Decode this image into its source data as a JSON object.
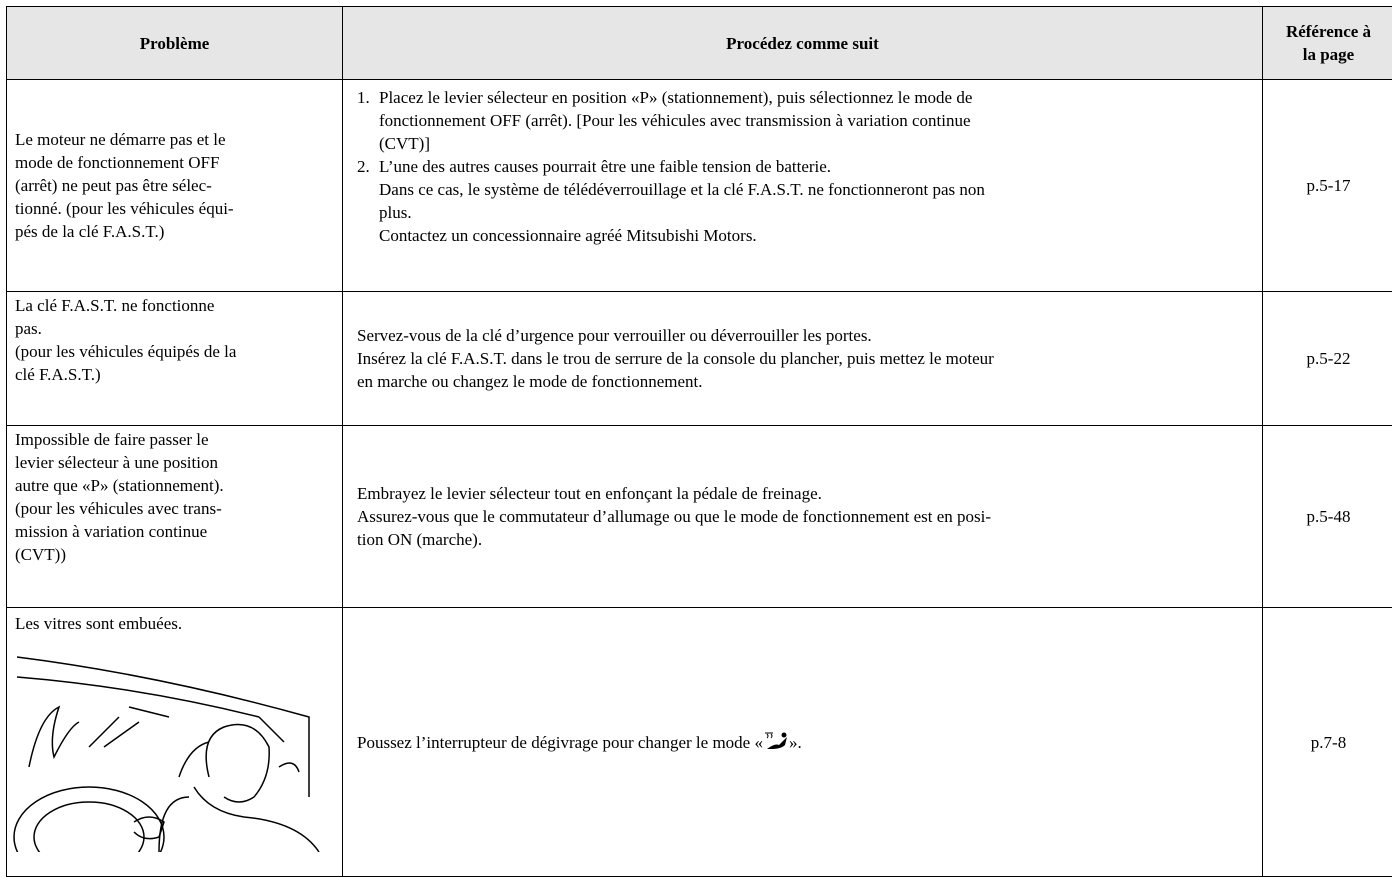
{
  "table": {
    "header": {
      "problem": "Problème",
      "procedure": "Procédez comme suit",
      "reference": [
        "Référence à",
        "la page"
      ]
    },
    "rows": [
      {
        "problem": [
          "Le moteur ne démarre pas et le",
          "mode de fonctionnement OFF",
          "(arrêt) ne peut pas être sélec-",
          "tionné. (pour les véhicules équi-",
          "pés de la clé F.A.S.T.)"
        ],
        "procedure": {
          "items": [
            {
              "number": "1.",
              "lines": [
                "Placez le levier sélecteur en position «P» (stationnement), puis sélectionnez le mode de",
                "fonctionnement OFF (arrêt). [Pour les véhicules avec transmission à variation continue",
                "(CVT)]"
              ]
            },
            {
              "number": "2.",
              "lines": [
                "L’une des autres causes pourrait être une faible tension de batterie.",
                "Dans ce cas, le système de télédéverrouillage et la clé F.A.S.T. ne fonctionneront pas non",
                "plus.",
                "Contactez un concessionnaire agréé Mitsubishi Motors."
              ]
            }
          ]
        },
        "reference": "p.5-17"
      },
      {
        "problem": [
          "La clé F.A.S.T. ne fonctionne",
          "pas.",
          "(pour les véhicules équipés de la",
          "clé F.A.S.T.)"
        ],
        "procedure": {
          "lines": [
            "Servez-vous de la clé d’urgence pour verrouiller ou déverrouiller les portes.",
            "Insérez la clé F.A.S.T. dans le trou de serrure de la console du plancher, puis mettez le moteur",
            "en marche ou changez le mode de fonctionnement."
          ]
        },
        "reference": "p.5-22"
      },
      {
        "problem": [
          "Impossible de faire passer le",
          "levier sélecteur à une position",
          "autre que «P» (stationnement).",
          "(pour les véhicules avec trans-",
          "mission à variation continue",
          "(CVT))"
        ],
        "procedure": {
          "lines": [
            "Embrayez le levier sélecteur tout en enfonçant la pédale de freinage.",
            "Assurez-vous que le commutateur d’allumage ou que le mode de fonctionnement est en posi-",
            "tion ON (marche)."
          ]
        },
        "reference": "p.5-48"
      },
      {
        "problem": [
          "Les vitres sont embuées."
        ],
        "procedure": {
          "before_icon": "Poussez l’interrupteur de dégivrage pour changer le mode «",
          "after_icon": "»."
        },
        "reference": "p.7-8"
      }
    ]
  }
}
